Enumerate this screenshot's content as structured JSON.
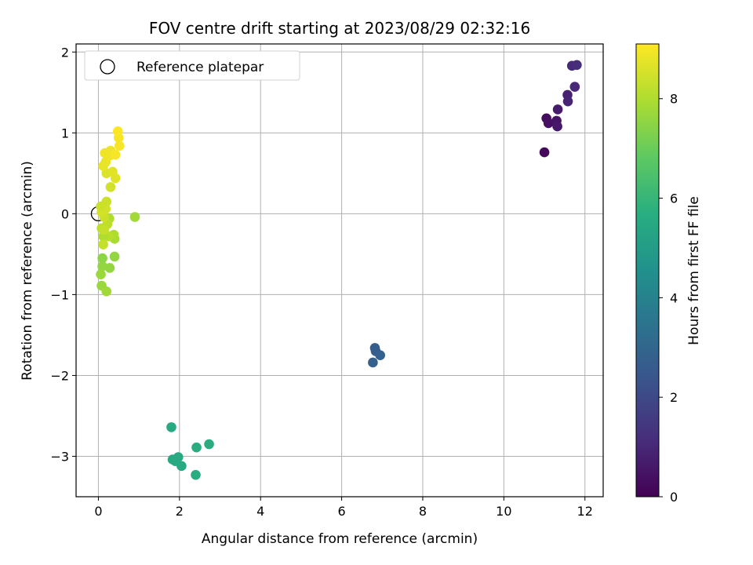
{
  "chart_data": {
    "type": "scatter",
    "title": "FOV centre drift starting at 2023/08/29 02:32:16",
    "xlabel": "Angular distance from reference (arcmin)",
    "ylabel": "Rotation from reference (arcmin)",
    "xlim": [
      -0.55,
      12.45
    ],
    "ylim": [
      -3.5,
      2.1
    ],
    "xticks": [
      0,
      2,
      4,
      6,
      8,
      10,
      12
    ],
    "yticks": [
      -3,
      -2,
      -1,
      0,
      1,
      2
    ],
    "grid": true,
    "legend": {
      "location": "top-left",
      "entries": [
        "Reference platepar"
      ]
    },
    "reference_point": {
      "label": "Reference platepar",
      "x": 0,
      "y": 0,
      "marker": "open-circle"
    },
    "colorbar": {
      "label": "Hours from first FF file",
      "colormap": "viridis",
      "range": [
        0,
        9.1
      ],
      "ticks": [
        0,
        2,
        4,
        6,
        8
      ]
    },
    "points": [
      {
        "x": 11.0,
        "y": 0.76,
        "c": 0.2
      },
      {
        "x": 11.05,
        "y": 1.18,
        "c": 0.3
      },
      {
        "x": 11.1,
        "y": 1.12,
        "c": 0.4
      },
      {
        "x": 11.3,
        "y": 1.15,
        "c": 0.5
      },
      {
        "x": 11.32,
        "y": 1.08,
        "c": 0.6
      },
      {
        "x": 11.33,
        "y": 1.29,
        "c": 0.7
      },
      {
        "x": 11.57,
        "y": 1.47,
        "c": 0.8
      },
      {
        "x": 11.58,
        "y": 1.39,
        "c": 0.9
      },
      {
        "x": 11.75,
        "y": 1.57,
        "c": 1.0
      },
      {
        "x": 11.68,
        "y": 1.83,
        "c": 1.1
      },
      {
        "x": 11.8,
        "y": 1.84,
        "c": 1.2
      },
      {
        "x": 6.82,
        "y": -1.66,
        "c": 2.7
      },
      {
        "x": 6.84,
        "y": -1.7,
        "c": 2.7
      },
      {
        "x": 6.95,
        "y": -1.75,
        "c": 2.8
      },
      {
        "x": 6.77,
        "y": -1.84,
        "c": 2.8
      },
      {
        "x": 1.8,
        "y": -2.64,
        "c": 5.5
      },
      {
        "x": 1.83,
        "y": -3.04,
        "c": 5.5
      },
      {
        "x": 1.9,
        "y": -3.06,
        "c": 5.5
      },
      {
        "x": 1.97,
        "y": -3.01,
        "c": 5.5
      },
      {
        "x": 2.05,
        "y": -3.12,
        "c": 5.5
      },
      {
        "x": 2.42,
        "y": -2.89,
        "c": 5.6
      },
      {
        "x": 2.73,
        "y": -2.85,
        "c": 5.6
      },
      {
        "x": 2.4,
        "y": -3.23,
        "c": 5.6
      },
      {
        "x": 0.9,
        "y": -0.04,
        "c": 7.8
      },
      {
        "x": 0.4,
        "y": -0.53,
        "c": 7.6
      },
      {
        "x": 0.28,
        "y": -0.67,
        "c": 7.6
      },
      {
        "x": 0.1,
        "y": -0.55,
        "c": 7.5
      },
      {
        "x": 0.1,
        "y": -0.65,
        "c": 7.6
      },
      {
        "x": 0.06,
        "y": -0.75,
        "c": 7.7
      },
      {
        "x": 0.08,
        "y": -0.89,
        "c": 7.7
      },
      {
        "x": 0.2,
        "y": -0.96,
        "c": 7.8
      },
      {
        "x": 0.4,
        "y": -0.31,
        "c": 7.9
      },
      {
        "x": 0.38,
        "y": -0.26,
        "c": 8.0
      },
      {
        "x": 0.25,
        "y": -0.28,
        "c": 8.1
      },
      {
        "x": 0.12,
        "y": -0.28,
        "c": 8.0
      },
      {
        "x": 0.27,
        "y": -0.06,
        "c": 8.0
      },
      {
        "x": 0.22,
        "y": -0.13,
        "c": 8.2
      },
      {
        "x": 0.08,
        "y": -0.18,
        "c": 8.2
      },
      {
        "x": 0.14,
        "y": -0.2,
        "c": 8.3
      },
      {
        "x": 0.12,
        "y": -0.38,
        "c": 8.3
      },
      {
        "x": 0.14,
        "y": -0.04,
        "c": 8.4
      },
      {
        "x": 0.08,
        "y": 0.02,
        "c": 8.5
      },
      {
        "x": 0.18,
        "y": 0.06,
        "c": 8.5
      },
      {
        "x": 0.06,
        "y": 0.09,
        "c": 8.4
      },
      {
        "x": 0.2,
        "y": 0.15,
        "c": 8.4
      },
      {
        "x": 0.3,
        "y": 0.33,
        "c": 8.5
      },
      {
        "x": 0.2,
        "y": 0.5,
        "c": 8.6
      },
      {
        "x": 0.42,
        "y": 0.44,
        "c": 8.7
      },
      {
        "x": 0.35,
        "y": 0.52,
        "c": 8.7
      },
      {
        "x": 0.12,
        "y": 0.59,
        "c": 8.8
      },
      {
        "x": 0.18,
        "y": 0.64,
        "c": 8.8
      },
      {
        "x": 0.28,
        "y": 0.72,
        "c": 8.9
      },
      {
        "x": 0.16,
        "y": 0.75,
        "c": 8.9
      },
      {
        "x": 0.3,
        "y": 0.78,
        "c": 8.9
      },
      {
        "x": 0.42,
        "y": 0.73,
        "c": 9.0
      },
      {
        "x": 0.52,
        "y": 0.84,
        "c": 9.0
      },
      {
        "x": 0.5,
        "y": 0.94,
        "c": 9.0
      },
      {
        "x": 0.48,
        "y": 1.02,
        "c": 9.1
      }
    ]
  }
}
